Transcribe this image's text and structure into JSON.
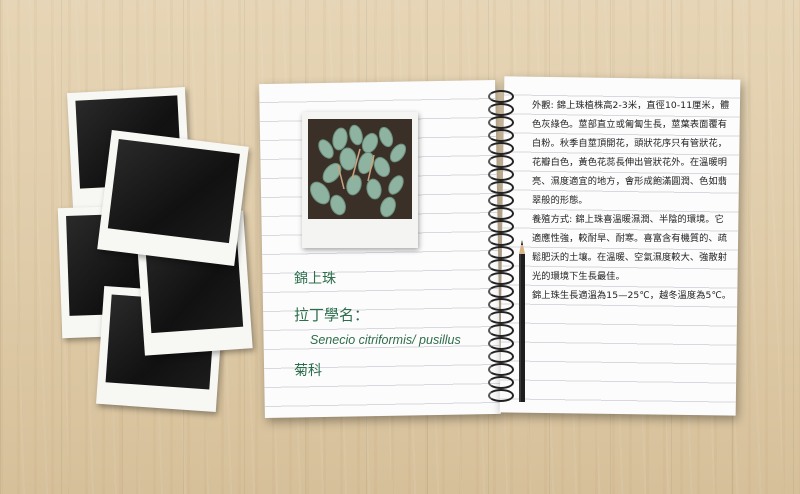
{
  "plant": {
    "name": "錦上珠",
    "latin_title": "拉丁學名：",
    "latin_name": "Senecio citriformis/ pusillus",
    "family": "菊科"
  },
  "description": {
    "appearance": "外觀: 錦上珠植株高2-3米，直徑10-11厘米，體色灰綠色。莖部直立或匍匐生長，莖葉表面覆有白粉。秋季自莖頂開花，頭狀花序只有管狀花，花瓣白色，黃色花蕊長伸出管狀花外。在溫暖明亮、濕度適宜的地方，會形成飽滿圓潤、色如翡翠般的形態。",
    "care": "養殖方式: 錦上珠喜溫暖濕潤、半陰的環境。它適應性強，較耐旱、耐寒。喜富含有機質的、疏鬆肥沃的土壤。在溫暖、空氣濕度較大、強散射光的環境下生長最佳。",
    "temperature": "錦上珠生長適溫為15—25℃，越冬溫度為5℃。"
  }
}
